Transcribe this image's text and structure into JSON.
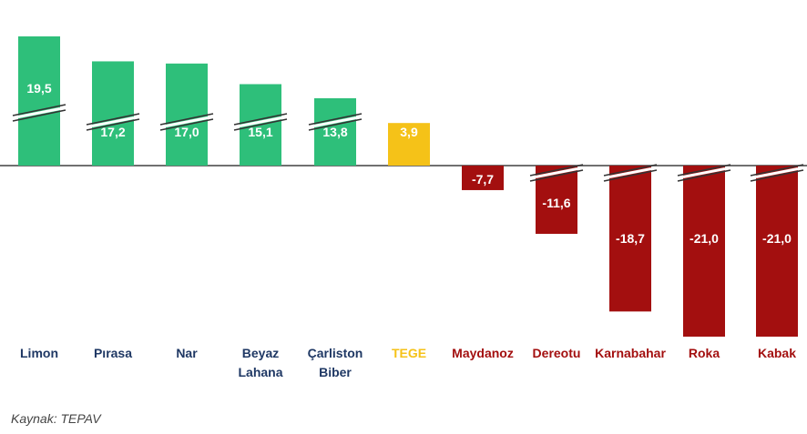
{
  "chart_data": {
    "type": "bar",
    "title": "",
    "xlabel": "",
    "ylabel": "",
    "categories": [
      "Limon",
      "Pırasa",
      "Nar",
      "Beyaz Lahana",
      "Çarliston Biber",
      "TEGE",
      "Maydanoz",
      "Dereotu",
      "Karnabahar",
      "Roka",
      "Kabak"
    ],
    "category_lines": [
      [
        "Limon"
      ],
      [
        "Pırasa"
      ],
      [
        "Nar"
      ],
      [
        "Beyaz",
        "Lahana"
      ],
      [
        "Çarliston",
        "Biber"
      ],
      [
        "TEGE"
      ],
      [
        "Maydanoz"
      ],
      [
        "Dereotu"
      ],
      [
        "Karnabahar"
      ],
      [
        "Roka"
      ],
      [
        "Kabak"
      ]
    ],
    "values": [
      19.5,
      17.2,
      17.0,
      15.1,
      13.8,
      3.9,
      -7.7,
      -11.6,
      -18.7,
      -21.0,
      -21.0
    ],
    "value_labels": [
      "19,5",
      "17,2",
      "17,0",
      "15,1",
      "13,8",
      "3,9",
      "-7,7",
      "-11,6",
      "-18,7",
      "-21,0",
      "-21,0"
    ],
    "axis_break_marks": [
      true,
      true,
      true,
      true,
      true,
      false,
      false,
      true,
      true,
      true,
      true
    ],
    "axis_scale": "broken",
    "grid": false,
    "legend": "none",
    "colors": {
      "positive": "#2ebf7a",
      "highlight": "#f5c218",
      "negative": "#a30f0f",
      "positive_label": "#1f3864",
      "highlight_label": "#f5c218",
      "negative_label": "#a30f0f",
      "axis": "#404040"
    }
  },
  "source": "Kaynak: TEPAV"
}
